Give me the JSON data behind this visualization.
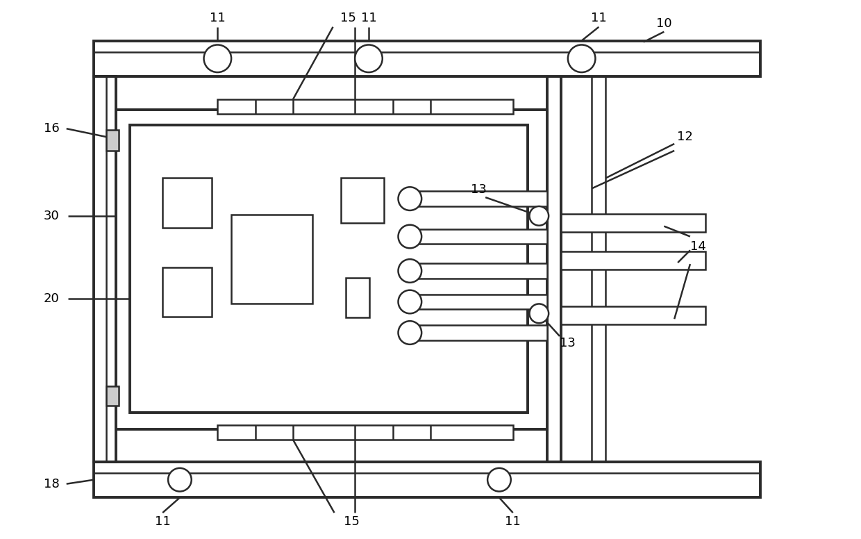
{
  "bg_color": "#ffffff",
  "line_color": "#2a2a2a",
  "lw": 1.8,
  "lw_thick": 2.8,
  "fig_w": 12.4,
  "fig_h": 7.76
}
